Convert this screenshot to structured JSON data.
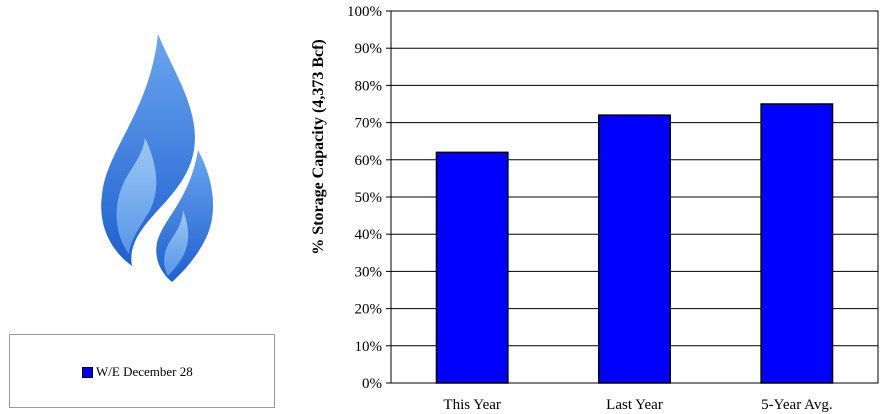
{
  "chart_data": {
    "type": "bar",
    "categories": [
      "This Year",
      "Last Year",
      "5-Year Avg."
    ],
    "series": [
      {
        "name": "W/E December 28",
        "values": [
          62,
          72,
          75
        ],
        "color": "#0000ff"
      }
    ],
    "xlabel": "",
    "ylabel": "% Storage Capacity (4,373 Bcf)",
    "ylim": [
      0,
      100
    ],
    "yticks": [
      "0%",
      "10%",
      "20%",
      "30%",
      "40%",
      "50%",
      "60%",
      "70%",
      "80%",
      "90%",
      "100%"
    ],
    "grid": true,
    "legend": "bottom-left box"
  },
  "legend": {
    "label": "W/E December 28"
  },
  "logo": {
    "icon": "gas-flame-icon",
    "colors": [
      "#1e5fd0",
      "#4a8ee6",
      "#8fc0f2"
    ]
  }
}
